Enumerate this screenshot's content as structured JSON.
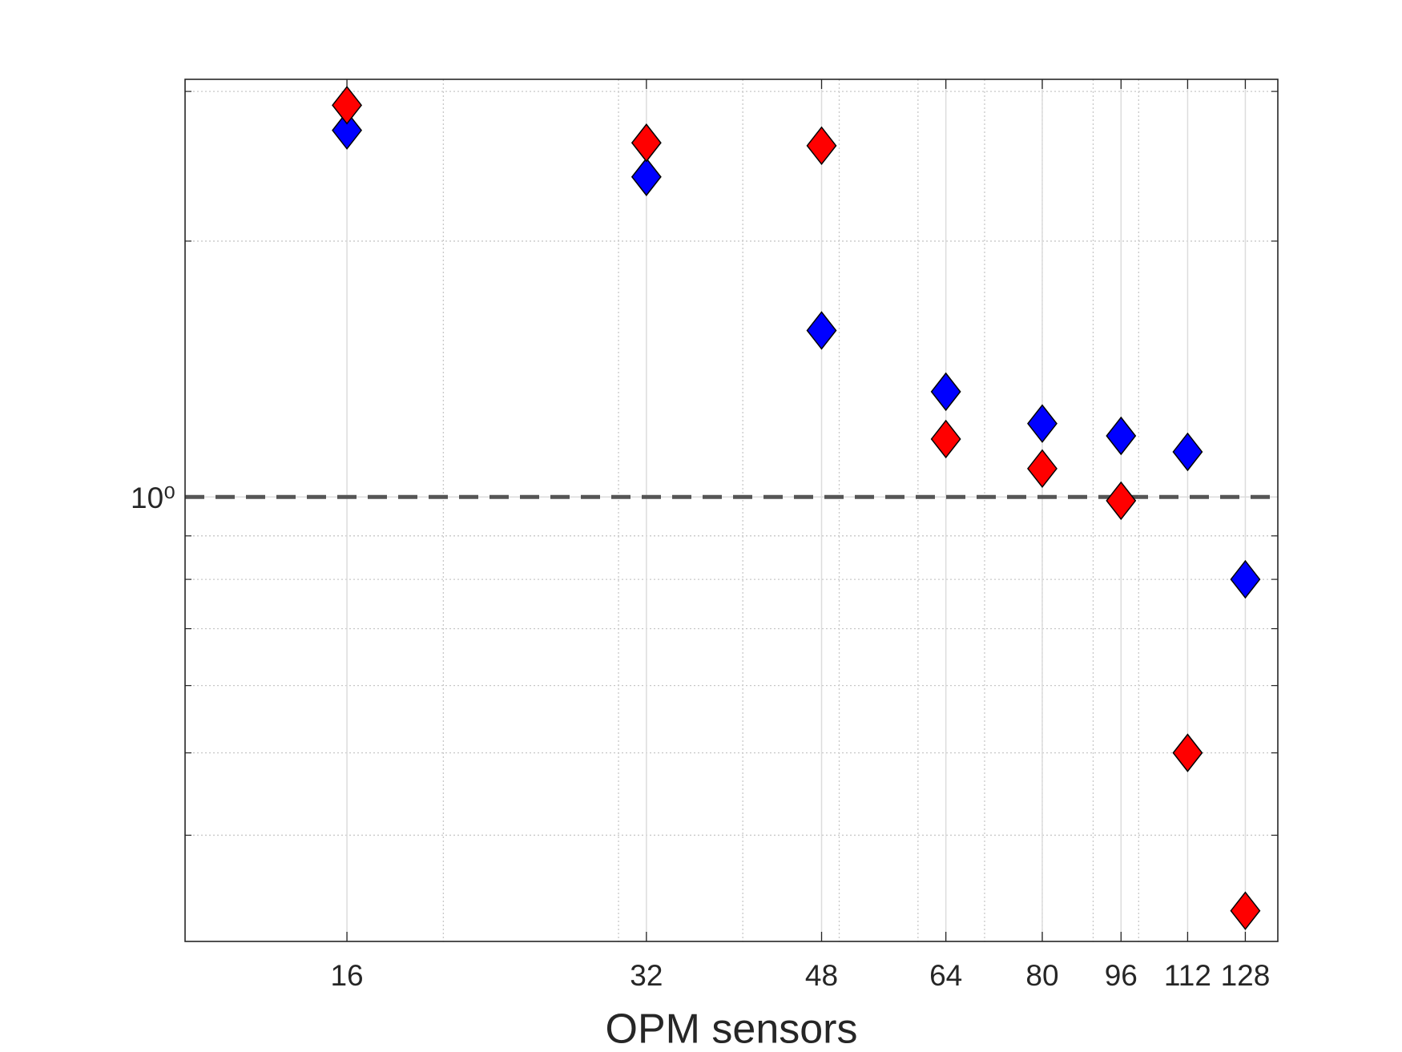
{
  "chart_data": {
    "type": "scatter",
    "x_label": "OPM sensors",
    "x": [
      16,
      32,
      48,
      64,
      80,
      96,
      112,
      128
    ],
    "series": [
      {
        "color": "#0000ff",
        "values": [
          2.7,
          2.38,
          1.57,
          1.33,
          1.22,
          1.18,
          1.13,
          0.8
        ]
      },
      {
        "color": "#ff0000",
        "values": [
          2.89,
          2.61,
          2.59,
          1.17,
          1.08,
          0.99,
          0.5,
          0.326
        ]
      }
    ],
    "xscale": "log",
    "yscale": "log",
    "xlim": [
      11,
      138
    ],
    "ylim": [
      0.3,
      3.1
    ],
    "xticks": [
      16,
      32,
      48,
      64,
      80,
      96,
      112,
      128
    ],
    "xminorticks": [
      20,
      30,
      40,
      50,
      60,
      70,
      80,
      90,
      100
    ],
    "yticks": [
      {
        "value": 1,
        "label": "10⁰"
      }
    ],
    "yminorticks": [
      0.4,
      0.5,
      0.6,
      0.7,
      0.8,
      0.9,
      2,
      3
    ],
    "grid": true,
    "reference_line": {
      "value": 1,
      "color": "#555555"
    }
  }
}
